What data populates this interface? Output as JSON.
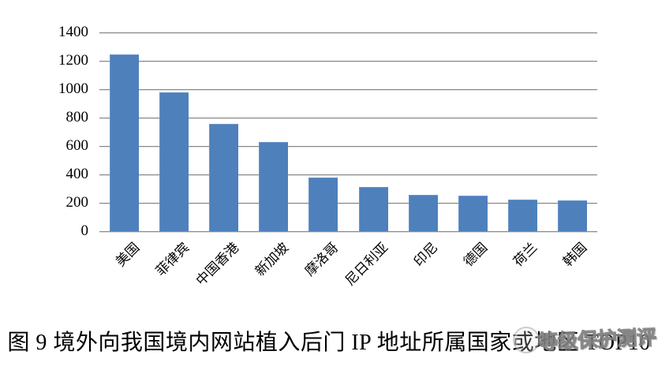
{
  "figure": {
    "caption": "图 9 境外向我国境内网站植入后门 IP 地址所属国家或地区 TOP10"
  },
  "watermark": {
    "text": "等级保护测评",
    "logo_icon": "circular-seal-icon"
  },
  "colors": {
    "bar": "#4E80BC",
    "gridline": "#8A8A8A",
    "gridline_highlight": "#DEDEDE",
    "watermark_gray": "#8F8F8F",
    "background": "#FFFFFF",
    "text": "#000000"
  },
  "chart_data": {
    "type": "bar",
    "title": "",
    "categories": [
      "美国",
      "菲律宾",
      "中国香港",
      "新加坡",
      "摩洛哥",
      "尼日利亚",
      "印尼",
      "德国",
      "荷兰",
      "韩国"
    ],
    "values": [
      1245,
      980,
      755,
      630,
      375,
      312,
      255,
      248,
      220,
      214
    ],
    "xlabel": "",
    "ylabel": "",
    "ylim": [
      0,
      1400
    ],
    "yticks": [
      0,
      200,
      400,
      600,
      800,
      1000,
      1200,
      1400
    ],
    "grid": true,
    "legend": false,
    "bar_color": "#4E80BC"
  }
}
